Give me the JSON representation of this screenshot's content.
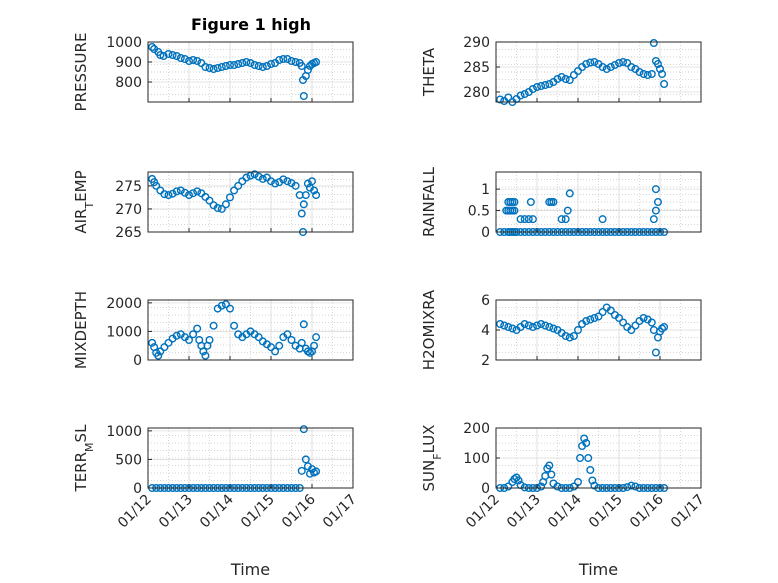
{
  "figure": {
    "title": "Figure 1 high",
    "marker_color": "#0072BD",
    "x_tick_labels": [
      "01/12",
      "01/13",
      "01/14",
      "01/15",
      "01/16",
      "01/17"
    ]
  },
  "chart_data": [
    {
      "type": "scatter",
      "id": "pressure",
      "title": "Figure 1 high",
      "ylabel": "PRESSURE",
      "ylabel_parts": [
        {
          "t": "PRESSURE"
        }
      ],
      "xlabel": "",
      "ylim": [
        700,
        1000
      ],
      "yticks": [
        800,
        900,
        1000
      ],
      "xlim": [
        0,
        5
      ],
      "grid": true,
      "color": "#0072BD",
      "x": [
        0.1,
        0.15,
        0.25,
        0.3,
        0.38,
        0.5,
        0.6,
        0.7,
        0.8,
        0.9,
        1.0,
        1.1,
        1.2,
        1.3,
        1.4,
        1.5,
        1.6,
        1.7,
        1.8,
        1.9,
        2.0,
        2.1,
        2.2,
        2.3,
        2.4,
        2.5,
        2.6,
        2.7,
        2.8,
        2.9,
        3.0,
        3.1,
        3.2,
        3.3,
        3.4,
        3.5,
        3.6,
        3.7,
        3.75,
        3.78,
        3.8,
        3.85,
        3.9,
        3.95,
        4.0,
        4.05,
        4.1
      ],
      "y": [
        975,
        965,
        950,
        935,
        930,
        940,
        935,
        930,
        920,
        915,
        905,
        910,
        905,
        895,
        875,
        870,
        865,
        870,
        875,
        880,
        885,
        885,
        890,
        895,
        900,
        895,
        885,
        880,
        875,
        880,
        890,
        895,
        910,
        915,
        915,
        905,
        900,
        895,
        880,
        810,
        730,
        830,
        860,
        880,
        890,
        895,
        900
      ]
    },
    {
      "type": "scatter",
      "id": "theta",
      "ylabel": "THETA",
      "ylabel_parts": [
        {
          "t": "THETA"
        }
      ],
      "xlabel": "",
      "ylim": [
        278,
        290
      ],
      "yticks": [
        280,
        285,
        290
      ],
      "xlim": [
        0,
        5
      ],
      "grid": true,
      "color": "#0072BD",
      "x": [
        0.1,
        0.2,
        0.3,
        0.4,
        0.5,
        0.6,
        0.7,
        0.8,
        0.9,
        1.0,
        1.1,
        1.2,
        1.3,
        1.4,
        1.5,
        1.6,
        1.7,
        1.8,
        1.9,
        2.0,
        2.1,
        2.2,
        2.3,
        2.4,
        2.5,
        2.6,
        2.7,
        2.8,
        2.9,
        3.0,
        3.1,
        3.2,
        3.3,
        3.4,
        3.5,
        3.6,
        3.7,
        3.8,
        3.85,
        3.9,
        3.95,
        4.0,
        4.05,
        4.1
      ],
      "y": [
        278.5,
        278.2,
        278.9,
        278.0,
        278.6,
        279.3,
        279.6,
        280.0,
        280.6,
        281.0,
        281.2,
        281.4,
        281.6,
        282.0,
        282.6,
        283.0,
        282.6,
        282.4,
        283.4,
        284.2,
        285.0,
        285.6,
        285.9,
        286.0,
        285.6,
        285.0,
        284.6,
        285.0,
        285.4,
        285.8,
        286.0,
        285.8,
        285.0,
        284.6,
        284.0,
        283.6,
        283.4,
        283.6,
        289.8,
        286.2,
        285.6,
        284.6,
        283.6,
        281.6
      ]
    },
    {
      "type": "scatter",
      "id": "air_temp",
      "ylabel": "AIR_TEMP",
      "ylabel_parts": [
        {
          "t": "AIR"
        },
        {
          "t": "T",
          "sub": true
        },
        {
          "t": "EMP"
        }
      ],
      "xlabel": "",
      "ylim": [
        265,
        278
      ],
      "yticks": [
        265,
        270,
        275
      ],
      "xlim": [
        0,
        5
      ],
      "grid": true,
      "color": "#0072BD",
      "x": [
        0.1,
        0.15,
        0.2,
        0.3,
        0.4,
        0.5,
        0.6,
        0.7,
        0.8,
        0.9,
        1.0,
        1.1,
        1.2,
        1.3,
        1.4,
        1.5,
        1.6,
        1.7,
        1.8,
        1.9,
        2.0,
        2.1,
        2.2,
        2.3,
        2.4,
        2.5,
        2.6,
        2.7,
        2.8,
        2.9,
        3.0,
        3.1,
        3.2,
        3.3,
        3.4,
        3.5,
        3.6,
        3.7,
        3.75,
        3.78,
        3.8,
        3.85,
        3.9,
        3.95,
        4.0,
        4.05,
        4.1
      ],
      "y": [
        276.5,
        275.8,
        275.0,
        274.0,
        273.2,
        273.0,
        273.3,
        273.8,
        274.0,
        273.5,
        273.0,
        273.4,
        273.8,
        273.4,
        272.6,
        271.8,
        270.8,
        270.2,
        270.0,
        271.0,
        272.5,
        274.0,
        275.0,
        276.0,
        276.8,
        277.2,
        277.5,
        277.0,
        276.5,
        276.8,
        276.0,
        275.5,
        275.8,
        276.4,
        276.0,
        275.6,
        275.0,
        273.0,
        269.0,
        265.0,
        271.0,
        273.0,
        275.5,
        274.6,
        276.0,
        274.0,
        273.0
      ]
    },
    {
      "type": "scatter",
      "id": "rainfall",
      "ylabel": "RAINFALL",
      "ylabel_parts": [
        {
          "t": "RAINFALL"
        }
      ],
      "xlabel": "",
      "ylim": [
        0,
        1.4
      ],
      "yticks": [
        0,
        0.5,
        1
      ],
      "ytick_labels": [
        "0",
        "0.5",
        "1"
      ],
      "xlim": [
        0,
        5
      ],
      "grid": true,
      "color": "#0072BD",
      "x": [
        0.1,
        0.2,
        0.3,
        0.35,
        0.4,
        0.45,
        0.5,
        0.6,
        0.7,
        0.8,
        0.9,
        1.0,
        1.1,
        1.2,
        1.3,
        1.4,
        1.5,
        1.6,
        1.7,
        1.8,
        1.9,
        2.0,
        2.1,
        2.2,
        2.3,
        2.4,
        2.5,
        2.6,
        2.7,
        2.8,
        2.9,
        3.0,
        3.1,
        3.2,
        3.3,
        3.4,
        3.5,
        3.6,
        3.7,
        3.8,
        3.9,
        4.0,
        4.1,
        0.3,
        0.35,
        0.4,
        0.45,
        0.25,
        0.3,
        0.35,
        0.4,
        0.45,
        0.6,
        0.7,
        0.8,
        0.9,
        0.85,
        1.3,
        1.35,
        1.4,
        1.6,
        1.7,
        1.75,
        1.8,
        2.6,
        3.9,
        3.95,
        3.85,
        3.9
      ],
      "y": [
        0,
        0,
        0,
        0,
        0,
        0,
        0,
        0,
        0,
        0,
        0,
        0,
        0,
        0,
        0,
        0,
        0,
        0,
        0,
        0,
        0,
        0,
        0,
        0,
        0,
        0,
        0,
        0,
        0,
        0,
        0,
        0,
        0,
        0,
        0,
        0,
        0,
        0,
        0,
        0,
        0,
        0,
        0,
        0.7,
        0.7,
        0.7,
        0.7,
        0.5,
        0.5,
        0.5,
        0.5,
        0.5,
        0.3,
        0.3,
        0.3,
        0.3,
        0.7,
        0.7,
        0.7,
        0.7,
        0.3,
        0.3,
        0.5,
        0.9,
        0.3,
        1.0,
        0.7,
        0.3,
        0.5
      ]
    },
    {
      "type": "scatter",
      "id": "mixdepth",
      "ylabel": "MIXDEPTH",
      "ylabel_parts": [
        {
          "t": "MIXDEPTH"
        }
      ],
      "xlabel": "",
      "ylim": [
        0,
        2100
      ],
      "yticks": [
        0,
        1000,
        2000
      ],
      "xlim": [
        0,
        5
      ],
      "grid": true,
      "color": "#0072BD",
      "x": [
        0.1,
        0.15,
        0.2,
        0.25,
        0.3,
        0.4,
        0.5,
        0.6,
        0.7,
        0.8,
        0.9,
        1.0,
        1.1,
        1.2,
        1.25,
        1.3,
        1.35,
        1.4,
        1.45,
        1.5,
        1.6,
        1.7,
        1.8,
        1.9,
        2.0,
        2.1,
        2.2,
        2.3,
        2.4,
        2.5,
        2.6,
        2.7,
        2.8,
        2.9,
        3.0,
        3.1,
        3.2,
        3.3,
        3.4,
        3.5,
        3.6,
        3.7,
        3.75,
        3.8,
        3.85,
        3.9,
        3.95,
        4.0,
        4.05,
        4.1
      ],
      "y": [
        600,
        450,
        250,
        150,
        300,
        450,
        600,
        750,
        850,
        900,
        800,
        700,
        900,
        1100,
        700,
        500,
        300,
        150,
        500,
        700,
        1200,
        1800,
        1900,
        1950,
        1800,
        1200,
        900,
        800,
        900,
        1000,
        900,
        800,
        650,
        550,
        450,
        300,
        500,
        800,
        900,
        700,
        500,
        400,
        600,
        1250,
        400,
        300,
        250,
        300,
        500,
        800
      ]
    },
    {
      "type": "scatter",
      "id": "h2omixra",
      "ylabel": "H2OMIXRA",
      "ylabel_parts": [
        {
          "t": "H2OMIXRA"
        }
      ],
      "xlabel": "",
      "ylim": [
        2,
        6
      ],
      "yticks": [
        2,
        4,
        6
      ],
      "xlim": [
        0,
        5
      ],
      "grid": true,
      "color": "#0072BD",
      "x": [
        0.1,
        0.2,
        0.3,
        0.4,
        0.5,
        0.6,
        0.7,
        0.8,
        0.9,
        1.0,
        1.1,
        1.2,
        1.3,
        1.4,
        1.5,
        1.6,
        1.7,
        1.8,
        1.9,
        2.0,
        2.1,
        2.2,
        2.3,
        2.4,
        2.5,
        2.6,
        2.7,
        2.8,
        2.9,
        3.0,
        3.1,
        3.2,
        3.3,
        3.4,
        3.5,
        3.6,
        3.7,
        3.8,
        3.85,
        3.9,
        3.95,
        4.0,
        4.05,
        4.1
      ],
      "y": [
        4.4,
        4.3,
        4.2,
        4.1,
        4.0,
        4.2,
        4.4,
        4.3,
        4.2,
        4.3,
        4.4,
        4.3,
        4.2,
        4.1,
        4.0,
        3.8,
        3.6,
        3.5,
        3.6,
        4.0,
        4.4,
        4.6,
        4.7,
        4.8,
        4.9,
        5.2,
        5.5,
        5.3,
        5.0,
        4.8,
        4.5,
        4.2,
        4.0,
        4.3,
        4.6,
        4.8,
        4.7,
        4.5,
        4.0,
        2.5,
        3.5,
        3.9,
        4.1,
        4.2
      ]
    },
    {
      "type": "scatter",
      "id": "terr_msl",
      "ylabel": "TERR_MSL",
      "ylabel_parts": [
        {
          "t": "TERR"
        },
        {
          "t": "M",
          "sub": true
        },
        {
          "t": "SL"
        }
      ],
      "xlabel": "Time",
      "ylim": [
        0,
        1050
      ],
      "yticks": [
        0,
        500,
        1000
      ],
      "xlim": [
        0,
        5
      ],
      "grid": true,
      "color": "#0072BD",
      "x": [
        0.1,
        0.2,
        0.3,
        0.4,
        0.5,
        0.6,
        0.7,
        0.8,
        0.9,
        1.0,
        1.1,
        1.2,
        1.3,
        1.4,
        1.5,
        1.6,
        1.7,
        1.8,
        1.9,
        2.0,
        2.1,
        2.2,
        2.3,
        2.4,
        2.5,
        2.6,
        2.7,
        2.8,
        2.9,
        3.0,
        3.1,
        3.2,
        3.3,
        3.4,
        3.5,
        3.6,
        3.7,
        3.75,
        3.8,
        3.85,
        3.9,
        3.95,
        4.0,
        4.05,
        4.1
      ],
      "y": [
        0,
        0,
        0,
        0,
        0,
        0,
        0,
        0,
        0,
        0,
        0,
        0,
        0,
        0,
        0,
        0,
        0,
        0,
        0,
        0,
        0,
        0,
        0,
        0,
        0,
        0,
        0,
        0,
        0,
        0,
        0,
        0,
        0,
        0,
        0,
        0,
        0,
        300,
        1030,
        500,
        380,
        250,
        330,
        270,
        290
      ]
    },
    {
      "type": "scatter",
      "id": "sun_flux",
      "ylabel": "SUN_FLUX",
      "ylabel_parts": [
        {
          "t": "SUN"
        },
        {
          "t": "F",
          "sub": true
        },
        {
          "t": "LUX"
        }
      ],
      "xlabel": "Time",
      "ylim": [
        0,
        200
      ],
      "yticks": [
        0,
        100,
        200
      ],
      "xlim": [
        0,
        5
      ],
      "grid": true,
      "color": "#0072BD",
      "x": [
        0.1,
        0.2,
        0.3,
        0.4,
        0.45,
        0.5,
        0.55,
        0.6,
        0.7,
        0.8,
        0.9,
        1.0,
        1.1,
        1.15,
        1.2,
        1.25,
        1.3,
        1.35,
        1.4,
        1.5,
        1.6,
        1.7,
        1.8,
        1.9,
        2.0,
        2.05,
        2.1,
        2.15,
        2.2,
        2.25,
        2.3,
        2.35,
        2.4,
        2.5,
        2.6,
        2.7,
        2.8,
        2.9,
        3.0,
        3.1,
        3.2,
        3.3,
        3.4,
        3.5,
        3.6,
        3.7,
        3.8,
        3.9,
        4.0,
        4.1
      ],
      "y": [
        0,
        0,
        5,
        20,
        30,
        35,
        25,
        10,
        2,
        0,
        0,
        0,
        5,
        20,
        40,
        65,
        75,
        45,
        15,
        5,
        0,
        0,
        0,
        5,
        20,
        100,
        140,
        165,
        150,
        100,
        60,
        25,
        8,
        0,
        0,
        0,
        0,
        0,
        0,
        0,
        3,
        8,
        5,
        0,
        0,
        0,
        0,
        0,
        0,
        0
      ]
    }
  ]
}
